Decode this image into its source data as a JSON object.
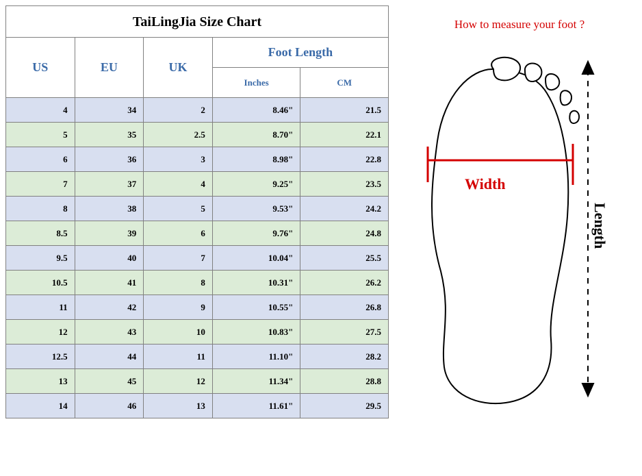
{
  "chart": {
    "title": "TaiLingJia Size Chart",
    "headers": {
      "us": "US",
      "eu": "EU",
      "uk": "UK",
      "footLength": "Foot Length",
      "inches": "Inches",
      "cm": "CM"
    },
    "header_color": "#3a6aa8",
    "row_color_a": "#d8dff0",
    "row_color_b": "#dcecd7",
    "border_color": "#808080",
    "col_widths_pct": [
      18,
      18,
      18,
      23,
      23
    ],
    "rows": [
      {
        "us": "4",
        "eu": "34",
        "uk": "2",
        "in": "8.46\"",
        "cm": "21.5"
      },
      {
        "us": "5",
        "eu": "35",
        "uk": "2.5",
        "in": "8.70\"",
        "cm": "22.1"
      },
      {
        "us": "6",
        "eu": "36",
        "uk": "3",
        "in": "8.98\"",
        "cm": "22.8"
      },
      {
        "us": "7",
        "eu": "37",
        "uk": "4",
        "in": "9.25\"",
        "cm": "23.5"
      },
      {
        "us": "8",
        "eu": "38",
        "uk": "5",
        "in": "9.53\"",
        "cm": "24.2"
      },
      {
        "us": "8.5",
        "eu": "39",
        "uk": "6",
        "in": "9.76\"",
        "cm": "24.8"
      },
      {
        "us": "9.5",
        "eu": "40",
        "uk": "7",
        "in": "10.04\"",
        "cm": "25.5"
      },
      {
        "us": "10.5",
        "eu": "41",
        "uk": "8",
        "in": "10.31\"",
        "cm": "26.2"
      },
      {
        "us": "11",
        "eu": "42",
        "uk": "9",
        "in": "10.55\"",
        "cm": "26.8"
      },
      {
        "us": "12",
        "eu": "43",
        "uk": "10",
        "in": "10.83\"",
        "cm": "27.5"
      },
      {
        "us": "12.5",
        "eu": "44",
        "uk": "11",
        "in": "11.10\"",
        "cm": "28.2"
      },
      {
        "us": "13",
        "eu": "45",
        "uk": "12",
        "in": "11.34\"",
        "cm": "28.8"
      },
      {
        "us": "14",
        "eu": "46",
        "uk": "13",
        "in": "11.61\"",
        "cm": "29.5"
      }
    ]
  },
  "diagram": {
    "title": "How to measure your foot ?",
    "title_color": "#d40000",
    "width_label": "Width",
    "length_label": "Length",
    "width_label_color": "#d40000",
    "length_label_color": "#000000",
    "measure_line_color": "#d40000",
    "length_arrow_color": "#000000",
    "foot_stroke": "#000000",
    "foot_fill": "#ffffff"
  }
}
